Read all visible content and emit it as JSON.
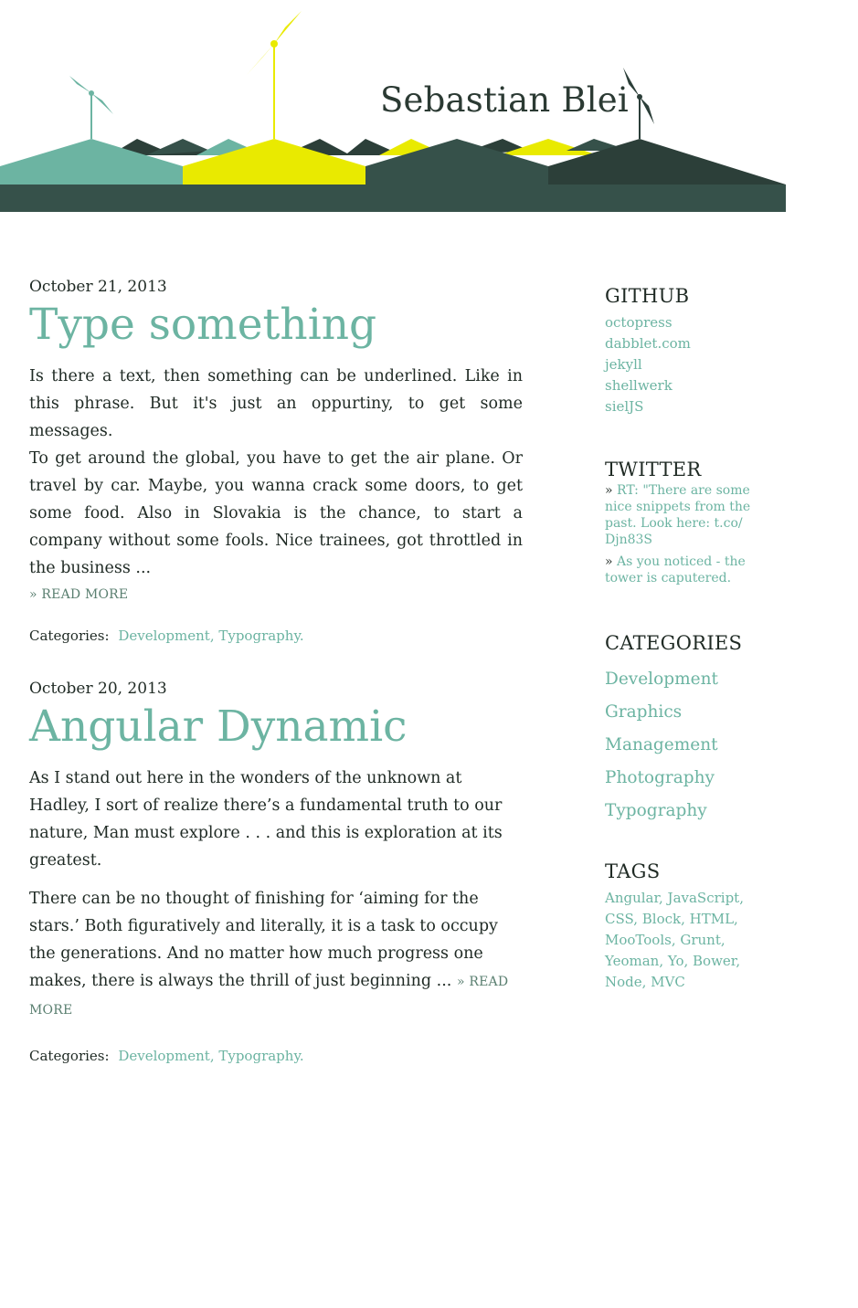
{
  "site": {
    "title": "Sebastian Blei"
  },
  "colors": {
    "accent": "#6cb4a2",
    "yellow": "#e9ea00",
    "dark_green": "#36514a",
    "darker_green": "#2c3f39",
    "text": "#1f2a24"
  },
  "posts": [
    {
      "date": "October 21, 2013",
      "title": "Type something",
      "paragraphs": [
        "Is there a text, then something can be underlined. Like in this phrase. But it's just an oppurtiny, to get some messages.",
        "To get around the global, you have to get the air plane. Or travel by car. Maybe, you wanna crack some doors, to get some food. Also in Slovakia is the chance, to start a company without some fools. Nice trainees, got throttled in the business ..."
      ],
      "read_more": "» READ MORE",
      "categories_label": "Categories:",
      "categories": "Development, Typography."
    },
    {
      "date": "October 20, 2013",
      "title": "Angular Dynamic",
      "paragraphs": [
        "As I stand out here in the wonders of the unknown at Hadley, I sort of realize there’s a fundamental truth to our nature, Man must explore . . . and this is exploration at its greatest.",
        "There can be no thought of finishing for ‘aiming for the stars.’ Both figuratively and literally, it is a task to occupy the generations. And no matter how much progress one makes, there is always the thrill of just beginning ..."
      ],
      "read_more": "» READ MORE",
      "categories_label": "Categories:",
      "categories": "Development, Typography."
    }
  ],
  "sidebar": {
    "github": {
      "heading": "GITHUB",
      "links": [
        "octopress",
        "dabblet.com",
        "jekyll",
        "shellwerk",
        "sielJS"
      ]
    },
    "twitter": {
      "heading": "TWITTER",
      "bullet": "»",
      "tweets": [
        "RT: \"There are some nice snippets from the past. Look here: t.co/ Djn83S",
        "As you noticed - the tower is caputered."
      ]
    },
    "categories": {
      "heading": "CATEGORIES",
      "items": [
        "Development",
        "Graphics",
        "Management",
        "Photography",
        "Typography"
      ]
    },
    "tags": {
      "heading": "TAGS",
      "text": "Angular, JavaScript, CSS, Block, HTML, MooTools, Grunt, Yeoman, Yo, Bower, Node, MVC"
    }
  }
}
